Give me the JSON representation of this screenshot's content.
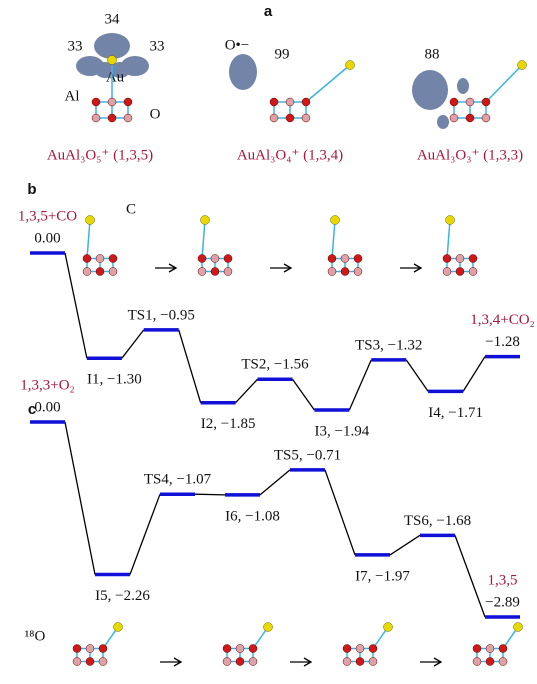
{
  "panel_a": {
    "label": "a",
    "structures": [
      {
        "formula": "AuAl₃O₅⁺ (1,3,5)",
        "annotations": [
          "34",
          "33",
          "33",
          "Au",
          "Al",
          "O"
        ]
      },
      {
        "formula": "AuAl₃O₄⁺ (1,3,4)",
        "annotations": [
          "O•−",
          "99"
        ]
      },
      {
        "formula": "AuAl₃O₃⁺ (1,3,3)",
        "annotations": [
          "88"
        ]
      }
    ]
  },
  "chart_data": [
    {
      "type": "energy-profile",
      "panel_label": "b",
      "color": "#1010d8",
      "line_color": "#000000",
      "categories": [
        "1,3,5+CO",
        null,
        null,
        null,
        null,
        null,
        null,
        null,
        "1,3,4+CO₂"
      ],
      "values": [
        0.0,
        -1.3,
        -0.95,
        -1.85,
        -1.56,
        -1.94,
        -1.32,
        -1.71,
        -1.28
      ],
      "value_labels": [
        "0.00",
        "I1, −1.30",
        "TS1, −0.95",
        "I2, −1.85",
        "TS2, −1.56",
        "I3, −1.94",
        "TS3, −1.32",
        "I4, −1.71",
        "−1.28"
      ],
      "annotations": [
        "C"
      ]
    },
    {
      "type": "energy-profile",
      "panel_label": "c",
      "color": "#1010d8",
      "line_color": "#000000",
      "categories": [
        "1,3,3+O₂",
        null,
        null,
        null,
        null,
        null,
        null,
        "1,3,5"
      ],
      "values": [
        0.0,
        -2.26,
        -1.07,
        -1.08,
        -0.71,
        -1.97,
        -1.68,
        -2.89
      ],
      "value_labels": [
        "0.00",
        "I5, −2.26",
        "TS4, −1.07",
        "I6, −1.08",
        "TS5, −0.71",
        "I7, −1.97",
        "TS6, −1.68",
        "−2.89"
      ],
      "annotations": [
        "¹⁸O"
      ]
    }
  ]
}
